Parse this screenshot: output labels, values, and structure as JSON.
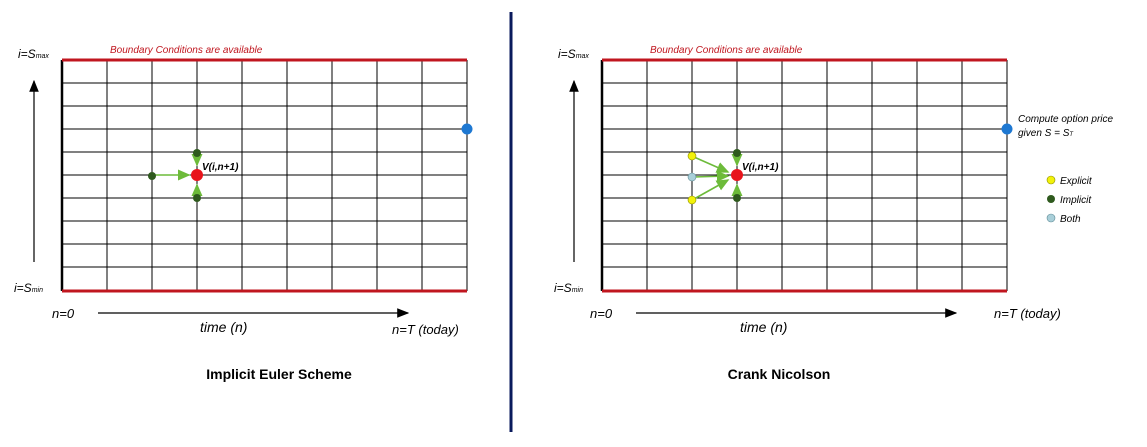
{
  "panels": [
    {
      "id": "implicit",
      "boundary_label": "Boundary Conditions are available",
      "y_top_label": {
        "main": "i=S",
        "sub": "max"
      },
      "y_bottom_label": {
        "main": "i=S",
        "sub": "min"
      },
      "n_start_label": "n=0",
      "time_label": "time (n)",
      "n_end_label": "n=T (today)",
      "node_label": "V(i,n+1)",
      "title": "Implicit Euler Scheme"
    },
    {
      "id": "crank",
      "boundary_label": "Boundary Conditions are available",
      "y_top_label": {
        "main": "i=S",
        "sub": "max"
      },
      "y_bottom_label": {
        "main": "i=S",
        "sub": "min"
      },
      "n_start_label": "n=0",
      "time_label": "time (n)",
      "n_end_label": "n=T (today)",
      "node_label": "V(i,n+1)",
      "title": "Crank Nicolson",
      "compute_note": {
        "line1": "Compute option price",
        "line2_main": "given S = S",
        "line2_sub": "T"
      }
    }
  ],
  "legend": [
    {
      "label": "Explicit",
      "color": "#f2f20a"
    },
    {
      "label": "Implicit",
      "color": "#2f5a1e"
    },
    {
      "label": "Both",
      "color": "#a9cfd9"
    }
  ],
  "colors": {
    "boundary": "#c0161f",
    "grid": "#000000",
    "target_node": "#e8141c",
    "output_node": "#1e78d2",
    "arrow": "#6dbb3a",
    "divider": "#0a1a5c"
  }
}
